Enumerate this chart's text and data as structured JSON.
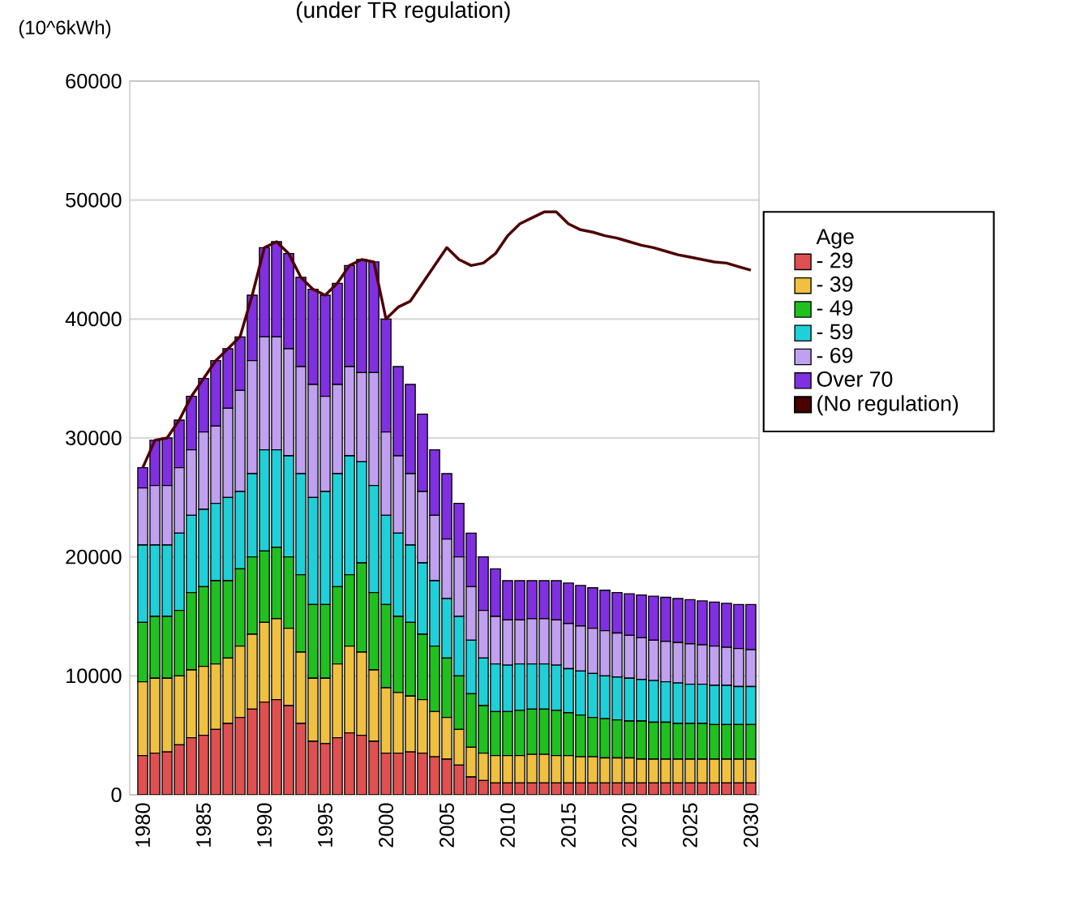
{
  "chart_data": {
    "type": "bar",
    "stacked": true,
    "title": "(under TR regulation)",
    "ylabel": "(10^6kWh)",
    "legend_title": "Age",
    "legend": "right",
    "grid": "y",
    "ylim": [
      0,
      60000
    ],
    "yticks": [
      0,
      10000,
      20000,
      30000,
      40000,
      50000,
      60000
    ],
    "categories": [
      "1980",
      null,
      null,
      null,
      null,
      "1985",
      null,
      null,
      null,
      null,
      "1990",
      null,
      null,
      null,
      null,
      "1995",
      null,
      null,
      null,
      null,
      "2000",
      null,
      null,
      null,
      null,
      "2005",
      null,
      null,
      null,
      null,
      "2010",
      null,
      null,
      null,
      null,
      "2015",
      null,
      null,
      null,
      null,
      "2020",
      null,
      null,
      null,
      null,
      "2025",
      null,
      null,
      null,
      null,
      "2030"
    ],
    "series": [
      {
        "name": "- 29",
        "color": "#e05050",
        "values": [
          3300,
          3500,
          3600,
          4200,
          4800,
          5000,
          5500,
          6000,
          6500,
          7200,
          7800,
          8000,
          7500,
          6000,
          4500,
          4300,
          4800,
          5200,
          5000,
          4500,
          3500,
          3500,
          3600,
          3500,
          3200,
          3000,
          2500,
          1500,
          1200,
          1000,
          1000,
          1000,
          1000,
          1000,
          1000,
          1000,
          1000,
          1000,
          1000,
          1000,
          1000,
          1000,
          1000,
          1000,
          1000,
          1000,
          1000,
          1000,
          1000,
          1000,
          1000
        ]
      },
      {
        "name": "- 39",
        "color": "#f0c040",
        "values": [
          6200,
          6300,
          6200,
          5800,
          5700,
          5800,
          5500,
          5500,
          6000,
          6300,
          6700,
          6800,
          6500,
          6000,
          5300,
          5500,
          6200,
          7300,
          7000,
          6000,
          5500,
          5100,
          4700,
          4500,
          3800,
          3500,
          3000,
          2500,
          2300,
          2300,
          2300,
          2300,
          2400,
          2400,
          2300,
          2300,
          2200,
          2200,
          2100,
          2100,
          2100,
          2000,
          2000,
          2000,
          2000,
          2000,
          2000,
          2000,
          2000,
          2000,
          2000
        ]
      },
      {
        "name": "- 49",
        "color": "#20c020",
        "values": [
          5000,
          5200,
          5200,
          5500,
          6500,
          6700,
          7000,
          6500,
          6500,
          6500,
          6000,
          6000,
          6000,
          6500,
          6200,
          6200,
          6500,
          6000,
          7500,
          6500,
          7000,
          6400,
          6200,
          5500,
          5500,
          5000,
          4500,
          4500,
          4000,
          3700,
          3700,
          3800,
          3800,
          3800,
          3800,
          3600,
          3500,
          3300,
          3300,
          3200,
          3100,
          3200,
          3100,
          3100,
          3000,
          3000,
          3000,
          2900,
          2900,
          2900,
          2900
        ]
      },
      {
        "name": "- 59",
        "color": "#20d0d8",
        "values": [
          6500,
          6000,
          6000,
          6500,
          6500,
          6500,
          6500,
          7000,
          6500,
          7000,
          8500,
          8200,
          8500,
          8500,
          9000,
          9500,
          9500,
          10000,
          8500,
          9000,
          7500,
          7000,
          6500,
          6000,
          5500,
          5000,
          5000,
          4500,
          4000,
          4000,
          3900,
          3900,
          3800,
          3800,
          3800,
          3700,
          3700,
          3700,
          3600,
          3600,
          3600,
          3500,
          3500,
          3400,
          3400,
          3300,
          3300,
          3300,
          3300,
          3200,
          3200
        ]
      },
      {
        "name": "- 69",
        "color": "#c0a0f0",
        "values": [
          4800,
          5000,
          5000,
          5500,
          5500,
          6500,
          6500,
          7500,
          8500,
          9500,
          9500,
          9500,
          9000,
          9000,
          9500,
          8000,
          7500,
          7500,
          7500,
          9500,
          7000,
          6500,
          6000,
          6000,
          5500,
          5000,
          5000,
          4500,
          4000,
          4000,
          3800,
          3700,
          3800,
          3800,
          3800,
          3800,
          3800,
          3800,
          3800,
          3700,
          3600,
          3500,
          3400,
          3400,
          3400,
          3400,
          3300,
          3300,
          3200,
          3200,
          3100
        ]
      },
      {
        "name": "Over 70",
        "color": "#8030e0",
        "values": [
          1700,
          3800,
          4000,
          4000,
          4500,
          4500,
          5500,
          5000,
          4500,
          5500,
          7500,
          8000,
          8000,
          7500,
          8000,
          8500,
          8500,
          8500,
          9500,
          9300,
          9500,
          7500,
          7500,
          6500,
          5500,
          5500,
          4500,
          4500,
          4500,
          4000,
          3300,
          3300,
          3200,
          3200,
          3300,
          3400,
          3400,
          3400,
          3400,
          3400,
          3500,
          3600,
          3700,
          3700,
          3700,
          3700,
          3700,
          3700,
          3700,
          3700,
          3800
        ]
      },
      {
        "name": "(No regulation)",
        "type": "line",
        "color": "#4d0000",
        "values": [
          27500,
          29800,
          30000,
          31500,
          33500,
          35000,
          36500,
          37500,
          38500,
          42000,
          46000,
          46500,
          45500,
          43500,
          42500,
          42000,
          43000,
          44500,
          45000,
          44800,
          40000,
          41000,
          41500,
          43000,
          44500,
          46000,
          45000,
          44500,
          44700,
          45500,
          47000,
          48000,
          48500,
          49000,
          49000,
          48000,
          47500,
          47300,
          47000,
          46800,
          46500,
          46200,
          46000,
          45700,
          45400,
          45200,
          45000,
          44800,
          44700,
          44400,
          44100
        ]
      }
    ]
  }
}
